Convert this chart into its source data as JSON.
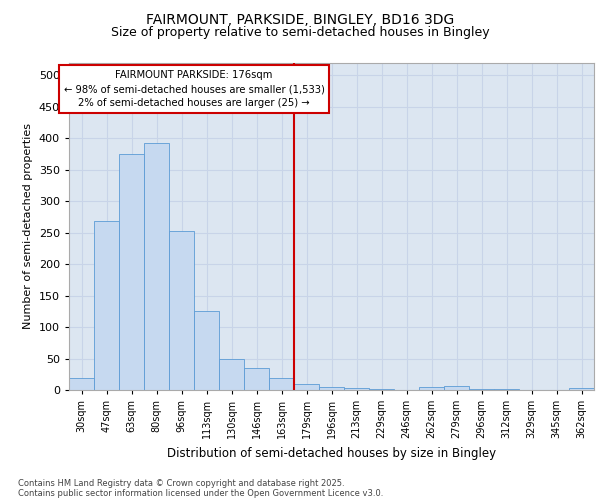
{
  "title1": "FAIRMOUNT, PARKSIDE, BINGLEY, BD16 3DG",
  "title2": "Size of property relative to semi-detached houses in Bingley",
  "xlabel": "Distribution of semi-detached houses by size in Bingley",
  "ylabel": "Number of semi-detached properties",
  "categories": [
    "30sqm",
    "47sqm",
    "63sqm",
    "80sqm",
    "96sqm",
    "113sqm",
    "130sqm",
    "146sqm",
    "163sqm",
    "179sqm",
    "196sqm",
    "213sqm",
    "229sqm",
    "246sqm",
    "262sqm",
    "279sqm",
    "296sqm",
    "312sqm",
    "329sqm",
    "345sqm",
    "362sqm"
  ],
  "values": [
    19,
    268,
    375,
    392,
    253,
    125,
    50,
    35,
    19,
    10,
    5,
    3,
    1,
    0,
    5,
    7,
    2,
    1,
    0,
    0,
    3
  ],
  "bar_color": "#c6d9f0",
  "bar_edge_color": "#5b9bd5",
  "grid_color": "#c8d4e8",
  "background_color": "#dce6f1",
  "vline_color": "#cc0000",
  "annotation_title": "FAIRMOUNT PARKSIDE: 176sqm",
  "annotation_line1": "← 98% of semi-detached houses are smaller (1,533)",
  "annotation_line2": "2% of semi-detached houses are larger (25) →",
  "annotation_box_color": "#cc0000",
  "ylim": [
    0,
    520
  ],
  "yticks": [
    0,
    50,
    100,
    150,
    200,
    250,
    300,
    350,
    400,
    450,
    500
  ],
  "footnote1": "Contains HM Land Registry data © Crown copyright and database right 2025.",
  "footnote2": "Contains public sector information licensed under the Open Government Licence v3.0."
}
